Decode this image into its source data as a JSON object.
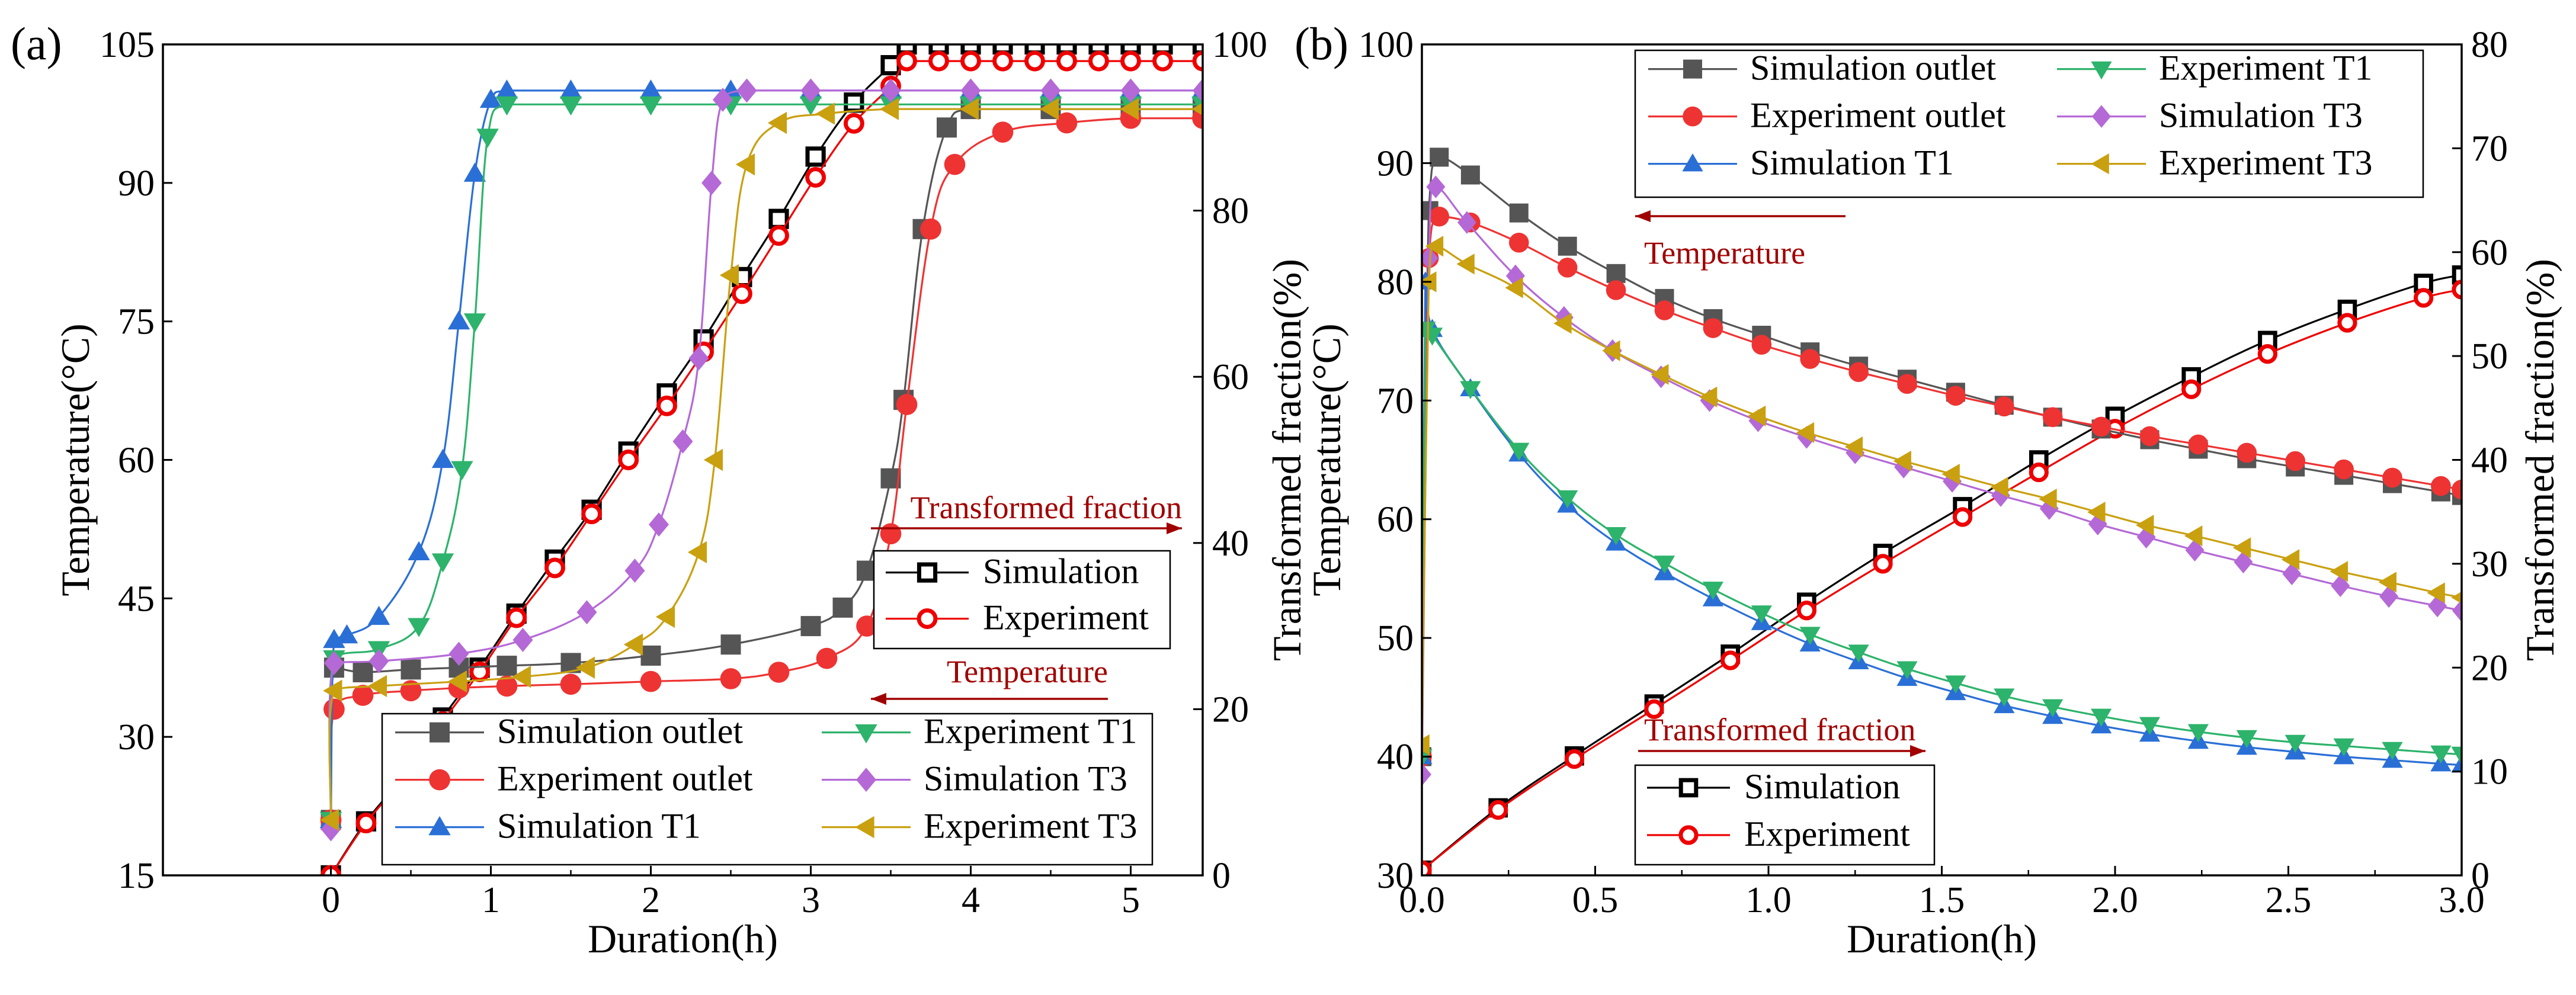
{
  "figure": {
    "colors": {
      "sim_outlet": "#555555",
      "exp_outlet": "#ee3333",
      "sim_t1": "#2a6fd6",
      "exp_t1": "#2db36b",
      "sim_t3": "#b469d6",
      "exp_t3": "#c9a010",
      "tf_sim": "#000000",
      "tf_exp": "#ee0000",
      "annotation": "#a00000"
    }
  },
  "chart_data": [
    {
      "type": "line",
      "panel_label": "(a)",
      "xlabel": "Duration(h)",
      "ylabel": "Temperature(°C)",
      "y2label": "Transformed fraction(%)",
      "xlim": [
        -1.05,
        5.45
      ],
      "ylim": [
        15,
        105
      ],
      "y2lim": [
        0,
        100
      ],
      "xticks": [
        0,
        1,
        2,
        3,
        4,
        5
      ],
      "yticks": [
        15,
        30,
        45,
        60,
        75,
        90,
        105
      ],
      "y2ticks": [
        0,
        20,
        40,
        60,
        80,
        100
      ],
      "grid": false,
      "annotations": [
        {
          "text": "Transformed fraction",
          "arrow": "right"
        },
        {
          "text": "Temperature",
          "arrow": "left"
        }
      ],
      "temperature_legend": {
        "placement": "bottom-right",
        "entries": [
          "Simulation outlet",
          "Experiment T1",
          "Experiment outlet",
          "Simulation T3",
          "Simulation T1",
          "Experiment T3"
        ]
      },
      "fraction_legend": {
        "placement": "right",
        "entries": [
          "Simulation",
          "Experiment"
        ]
      },
      "temperature_series": [
        {
          "name": "Simulation outlet",
          "marker": "square",
          "color_key": "sim_outlet",
          "x": [
            0,
            0.02,
            0.2,
            0.5,
            0.8,
            1.1,
            1.5,
            2,
            2.5,
            3,
            3.2,
            3.35,
            3.5,
            3.58,
            3.7,
            3.85,
            4,
            4.5,
            5,
            5.45
          ],
          "y": [
            21,
            37.5,
            37,
            37.3,
            37.5,
            37.7,
            38,
            38.8,
            40,
            42,
            44,
            48,
            58,
            66.5,
            85,
            96,
            98,
            98,
            98,
            98
          ]
        },
        {
          "name": "Experiment outlet",
          "marker": "circle",
          "color_key": "exp_outlet",
          "x": [
            0,
            0.02,
            0.2,
            0.5,
            0.8,
            1.1,
            1.5,
            2,
            2.5,
            2.8,
            3.1,
            3.35,
            3.5,
            3.6,
            3.75,
            3.9,
            4.2,
            4.6,
            5,
            5.45
          ],
          "y": [
            21,
            33,
            34.5,
            35,
            35.3,
            35.5,
            35.7,
            36,
            36.3,
            37,
            38.5,
            42,
            52,
            66,
            85,
            92,
            95.5,
            96.5,
            97,
            97
          ]
        },
        {
          "name": "Simulation T1",
          "marker": "triangle-up",
          "color_key": "sim_t1",
          "x": [
            0,
            0.02,
            0.1,
            0.3,
            0.55,
            0.7,
            0.8,
            0.9,
            1,
            1.1,
            1.5,
            2,
            2.5,
            3,
            3.5,
            4,
            4.5,
            5,
            5.45
          ],
          "y": [
            21,
            40.5,
            41,
            43,
            50,
            60,
            75,
            91,
            99,
            100,
            100,
            100,
            100,
            100,
            100,
            100,
            100,
            100,
            100
          ]
        },
        {
          "name": "Experiment T1",
          "marker": "triangle-down",
          "color_key": "exp_t1",
          "x": [
            0,
            0.02,
            0.3,
            0.55,
            0.7,
            0.82,
            0.9,
            0.98,
            1.1,
            1.5,
            2,
            2.5,
            3,
            3.5,
            4,
            4.5,
            5,
            5.45
          ],
          "y": [
            21,
            38.5,
            39.5,
            42,
            49,
            59,
            75,
            95,
            98.5,
            98.5,
            98.5,
            98.5,
            98.5,
            98.5,
            98.5,
            98.5,
            98.5,
            98.5
          ]
        },
        {
          "name": "Simulation T3",
          "marker": "diamond",
          "color_key": "sim_t3",
          "x": [
            0,
            0.02,
            0.3,
            0.8,
            1.2,
            1.6,
            1.9,
            2.05,
            2.2,
            2.3,
            2.38,
            2.45,
            2.6,
            3,
            3.5,
            4,
            4.5,
            5,
            5.45
          ],
          "y": [
            20,
            38,
            38.2,
            39,
            40.5,
            43.5,
            48,
            53,
            62,
            71,
            90,
            99,
            100,
            100,
            100,
            100,
            100,
            100,
            100
          ]
        },
        {
          "name": "Experiment T3",
          "marker": "triangle-left",
          "color_key": "exp_t3",
          "x": [
            0,
            0.02,
            0.3,
            0.8,
            1.2,
            1.6,
            1.9,
            2.1,
            2.3,
            2.4,
            2.5,
            2.6,
            2.8,
            3.1,
            3.5,
            4,
            4.5,
            5,
            5.45
          ],
          "y": [
            21,
            35,
            35.5,
            36,
            36.5,
            37.5,
            40,
            43,
            50,
            60,
            80,
            92,
            96.5,
            97.5,
            98,
            98,
            98,
            98,
            98
          ]
        }
      ],
      "fraction_series": [
        {
          "name": "Simulation",
          "marker": "open-square",
          "color_key": "tf_sim",
          "x": [
            0,
            0.22,
            0.48,
            0.7,
            0.93,
            1.16,
            1.4,
            1.63,
            1.86,
            2.1,
            2.33,
            2.57,
            2.8,
            3.03,
            3.27,
            3.5,
            3.6,
            3.8,
            4.0,
            4.2,
            4.4,
            4.6,
            4.8,
            5.0,
            5.2,
            5.45
          ],
          "y": [
            0,
            6.5,
            12.5,
            19,
            25,
            31.5,
            38,
            44,
            51,
            58,
            64.5,
            72,
            79,
            86.5,
            93,
            97.5,
            100,
            100,
            100,
            100,
            100,
            100,
            100,
            100,
            100,
            100
          ]
        },
        {
          "name": "Experiment",
          "marker": "open-circle",
          "color_key": "tf_exp",
          "x": [
            0,
            0.22,
            0.48,
            0.7,
            0.93,
            1.16,
            1.4,
            1.63,
            1.86,
            2.1,
            2.33,
            2.57,
            2.8,
            3.03,
            3.27,
            3.5,
            3.6,
            3.8,
            4.0,
            4.2,
            4.4,
            4.6,
            4.8,
            5.0,
            5.2,
            5.45
          ],
          "y": [
            0,
            6.3,
            12.3,
            18.5,
            24.5,
            31,
            37,
            43.5,
            50,
            56.5,
            63,
            70,
            77,
            84,
            90.5,
            95,
            98,
            98,
            98,
            98,
            98,
            98,
            98,
            98,
            98,
            98
          ]
        }
      ]
    },
    {
      "type": "line",
      "panel_label": "(b)",
      "xlabel": "Duration(h)",
      "ylabel": "Temperature(°C)",
      "y2label": "Transformed fraction(%)",
      "xlim": [
        0,
        3.0
      ],
      "ylim": [
        30,
        100
      ],
      "y2lim": [
        0,
        80
      ],
      "xticks": [
        0.0,
        0.5,
        1.0,
        1.5,
        2.0,
        2.5,
        3.0
      ],
      "yticks": [
        30,
        40,
        50,
        60,
        70,
        80,
        90,
        100
      ],
      "y2ticks": [
        0,
        10,
        20,
        30,
        40,
        50,
        60,
        70,
        80
      ],
      "grid": false,
      "annotations": [
        {
          "text": "Temperature",
          "arrow": "left"
        },
        {
          "text": "Transformed fraction",
          "arrow": "right"
        }
      ],
      "temperature_legend": {
        "placement": "top",
        "entries": [
          "Simulation outlet",
          "Experiment T1",
          "Experiment outlet",
          "Simulation T3",
          "Simulation T1",
          "Experiment T3"
        ]
      },
      "fraction_legend": {
        "placement": "bottom-left",
        "entries": [
          "Simulation",
          "Experiment"
        ]
      },
      "temperature_series": [
        {
          "name": "Simulation outlet",
          "marker": "square",
          "color_key": "sim_outlet",
          "x": [
            0,
            0.02,
            0.05,
            0.14,
            0.28,
            0.42,
            0.56,
            0.7,
            0.84,
            0.98,
            1.12,
            1.26,
            1.4,
            1.54,
            1.68,
            1.82,
            1.96,
            2.1,
            2.24,
            2.38,
            2.52,
            2.66,
            2.8,
            2.94,
            3.0
          ],
          "y": [
            40,
            86,
            90.5,
            89,
            85.8,
            83,
            80.7,
            78.6,
            76.9,
            75.5,
            74.1,
            72.9,
            71.8,
            70.7,
            69.6,
            68.6,
            67.6,
            66.7,
            65.9,
            65.1,
            64.4,
            63.7,
            63,
            62.3,
            62
          ]
        },
        {
          "name": "Experiment outlet",
          "marker": "circle",
          "color_key": "exp_outlet",
          "x": [
            0,
            0.02,
            0.05,
            0.14,
            0.28,
            0.42,
            0.56,
            0.7,
            0.84,
            0.98,
            1.12,
            1.26,
            1.4,
            1.54,
            1.68,
            1.82,
            1.96,
            2.1,
            2.24,
            2.38,
            2.52,
            2.66,
            2.8,
            2.94,
            3.0
          ],
          "y": [
            40,
            82,
            85.5,
            85,
            83.3,
            81.2,
            79.3,
            77.6,
            76.1,
            74.7,
            73.5,
            72.4,
            71.4,
            70.4,
            69.5,
            68.6,
            67.8,
            67.0,
            66.3,
            65.6,
            64.9,
            64.2,
            63.5,
            62.8,
            62.5
          ]
        },
        {
          "name": "Simulation T1",
          "marker": "triangle-up",
          "color_key": "sim_t1",
          "x": [
            0,
            0.01,
            0.03,
            0.14,
            0.28,
            0.42,
            0.56,
            0.7,
            0.84,
            0.98,
            1.12,
            1.26,
            1.4,
            1.54,
            1.68,
            1.82,
            1.96,
            2.1,
            2.24,
            2.38,
            2.52,
            2.66,
            2.8,
            2.94,
            3.0
          ],
          "y": [
            40,
            80,
            76,
            71,
            65.5,
            61.2,
            58,
            55.5,
            53.3,
            51.3,
            49.5,
            48,
            46.6,
            45.4,
            44.3,
            43.4,
            42.6,
            41.9,
            41.3,
            40.8,
            40.4,
            40,
            39.7,
            39.4,
            39.3
          ]
        },
        {
          "name": "Experiment T1",
          "marker": "triangle-down",
          "color_key": "exp_t1",
          "x": [
            0,
            0.01,
            0.03,
            0.14,
            0.28,
            0.42,
            0.56,
            0.7,
            0.84,
            0.98,
            1.12,
            1.26,
            1.4,
            1.54,
            1.68,
            1.82,
            1.96,
            2.1,
            2.24,
            2.38,
            2.52,
            2.66,
            2.8,
            2.94,
            3.0
          ],
          "y": [
            40,
            76,
            75.5,
            71,
            65.8,
            61.8,
            58.7,
            56.3,
            54.1,
            52.1,
            50.3,
            48.8,
            47.4,
            46.2,
            45.1,
            44.2,
            43.4,
            42.7,
            42.1,
            41.6,
            41.2,
            40.9,
            40.6,
            40.3,
            40.2
          ]
        },
        {
          "name": "Simulation T3",
          "marker": "diamond",
          "color_key": "sim_t3",
          "x": [
            0,
            0.02,
            0.04,
            0.13,
            0.27,
            0.41,
            0.55,
            0.69,
            0.83,
            0.97,
            1.11,
            1.25,
            1.39,
            1.53,
            1.67,
            1.81,
            1.95,
            2.09,
            2.23,
            2.37,
            2.51,
            2.65,
            2.79,
            2.93,
            3.0
          ],
          "y": [
            38.5,
            82,
            88,
            85,
            80.5,
            77,
            74.2,
            72,
            70,
            68.3,
            66.9,
            65.6,
            64.4,
            63.2,
            62.0,
            60.9,
            59.6,
            58.5,
            57.4,
            56.4,
            55.4,
            54.4,
            53.5,
            52.7,
            52.3
          ]
        },
        {
          "name": "Experiment T3",
          "marker": "triangle-left",
          "color_key": "exp_t3",
          "x": [
            0,
            0.02,
            0.04,
            0.13,
            0.27,
            0.41,
            0.55,
            0.69,
            0.83,
            0.97,
            1.11,
            1.25,
            1.39,
            1.53,
            1.67,
            1.81,
            1.95,
            2.09,
            2.23,
            2.37,
            2.51,
            2.65,
            2.79,
            2.93,
            3.0
          ],
          "y": [
            41,
            80,
            83,
            81.5,
            79.5,
            76.5,
            74.2,
            72.2,
            70.3,
            68.7,
            67.3,
            66.1,
            64.9,
            63.8,
            62.7,
            61.7,
            60.6,
            59.5,
            58.6,
            57.6,
            56.6,
            55.6,
            54.7,
            53.8,
            53.4
          ]
        }
      ],
      "fraction_series": [
        {
          "name": "Simulation",
          "marker": "open-square",
          "color_key": "tf_sim",
          "x": [
            0,
            0.22,
            0.44,
            0.67,
            0.89,
            1.11,
            1.33,
            1.56,
            1.78,
            2.0,
            2.22,
            2.44,
            2.67,
            2.89,
            3.0
          ],
          "y": [
            0.5,
            6.5,
            11.5,
            16.5,
            21.3,
            26.3,
            31.0,
            35.5,
            40.0,
            44.2,
            48.0,
            51.5,
            54.5,
            57.0,
            57.8
          ]
        },
        {
          "name": "Experiment",
          "marker": "open-circle",
          "color_key": "tf_exp",
          "x": [
            0,
            0.22,
            0.44,
            0.67,
            0.89,
            1.11,
            1.33,
            1.56,
            1.78,
            2.0,
            2.22,
            2.44,
            2.67,
            2.89,
            3.0
          ],
          "y": [
            0.5,
            6.3,
            11.2,
            16.0,
            20.7,
            25.5,
            30.0,
            34.5,
            38.8,
            43.0,
            46.8,
            50.2,
            53.2,
            55.6,
            56.4
          ]
        }
      ]
    }
  ]
}
